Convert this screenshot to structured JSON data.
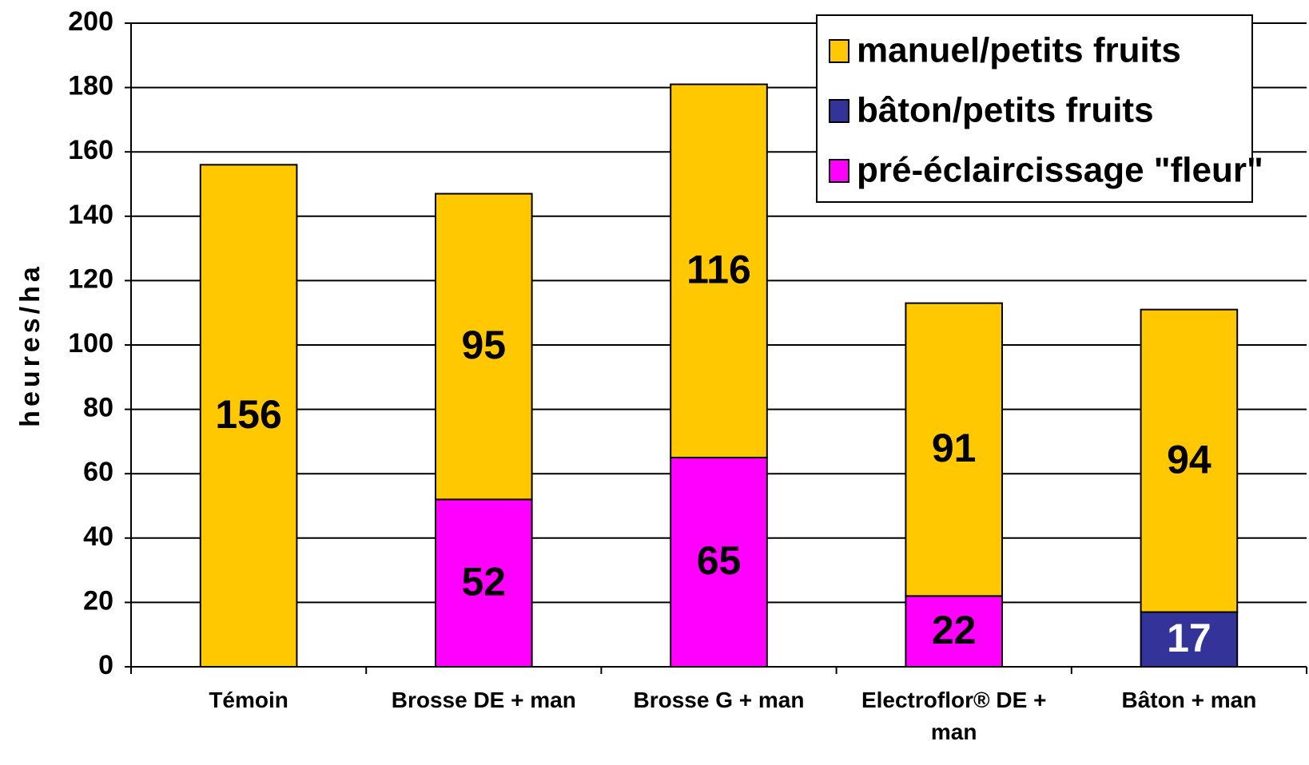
{
  "chart_data": {
    "type": "stacked_bar",
    "y_label": "heures/ha",
    "categories": [
      "Témoin",
      "Brosse DE + man",
      "Brosse G + man",
      "Electroflor® DE + man",
      "Bâton + man"
    ],
    "series": [
      {
        "name": "manuel/petits fruits",
        "color": "#FFC800",
        "label_color": "#000000",
        "values": [
          156,
          95,
          116,
          91,
          94
        ]
      },
      {
        "name": "bâton/petits fruits",
        "color": "#333399",
        "label_color": "#ffffff",
        "values": [
          null,
          null,
          null,
          null,
          17
        ]
      },
      {
        "name": "pré-éclaircissage \"fleur\"",
        "color": "#FF00FF",
        "label_color": "#000000",
        "values": [
          null,
          52,
          65,
          22,
          null
        ]
      }
    ],
    "ylim": [
      0,
      200
    ],
    "yticks": [
      0,
      20,
      40,
      60,
      80,
      100,
      120,
      140,
      160,
      180,
      200
    ],
    "grid": true,
    "legend": "top-right"
  }
}
